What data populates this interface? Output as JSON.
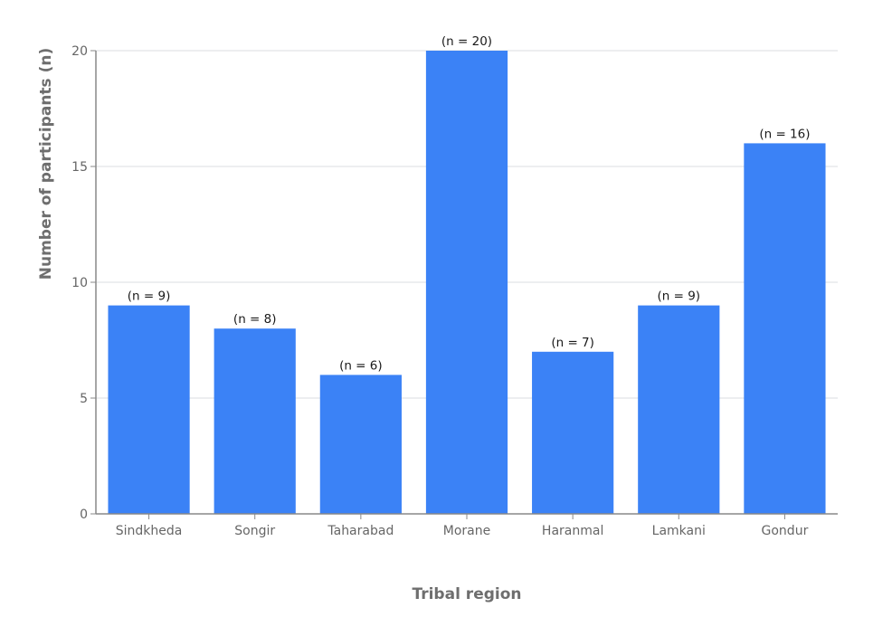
{
  "chart_data": {
    "type": "bar",
    "title": "",
    "xlabel": "Tribal region",
    "ylabel": "Number of participants (n)",
    "categories": [
      "Sindkheda",
      "Songir",
      "Taharabad",
      "Morane",
      "Haranmal",
      "Lamkani",
      "Gondur"
    ],
    "values": [
      9,
      8,
      6,
      20,
      7,
      9,
      16
    ],
    "data_labels": [
      "(n = 9)",
      "(n = 8)",
      "(n = 6)",
      "(n = 20)",
      "(n = 7)",
      "(n = 9)",
      "(n = 16)"
    ],
    "ylim": [
      0,
      20
    ],
    "yticks": [
      0,
      5,
      10,
      15,
      20
    ],
    "grid": true,
    "legend": null,
    "colors": {
      "bar": "#3b82f6",
      "grid": "#e2e4e8",
      "axis": "#888888"
    }
  }
}
